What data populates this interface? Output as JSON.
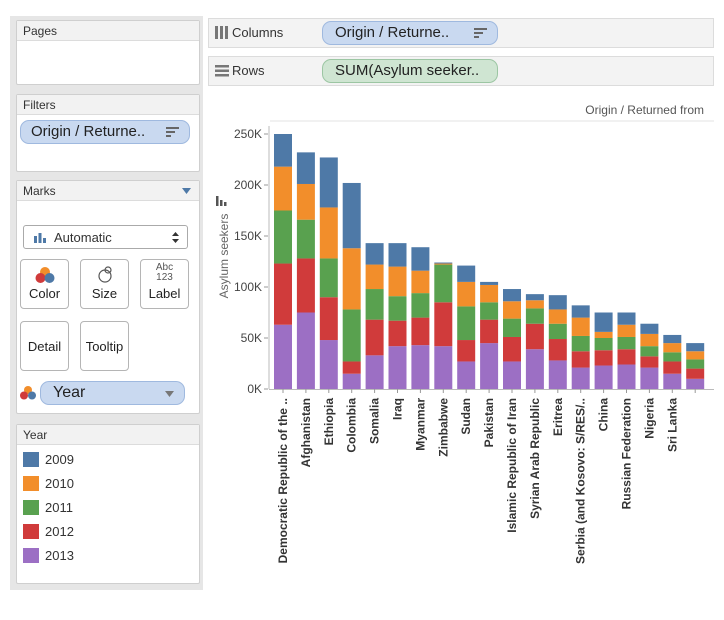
{
  "pages": {
    "title": "Pages"
  },
  "shelves": {
    "columns_label": "Columns",
    "columns_pill": "Origin / Returne..",
    "rows_label": "Rows",
    "rows_pill": "SUM(Asylum seeker.."
  },
  "filters": {
    "title": "Filters",
    "pill": "Origin / Returne.."
  },
  "marks": {
    "title": "Marks",
    "type": "Automatic",
    "buttons": {
      "color": "Color",
      "size": "Size",
      "label": "Label",
      "detail": "Detail",
      "tooltip": "Tooltip"
    },
    "label_glyph_top": "Abc",
    "label_glyph_bottom": "123",
    "color_pill": "Year"
  },
  "legend": {
    "title": "Year",
    "items": [
      {
        "label": "2009",
        "color": "#4e79a7"
      },
      {
        "label": "2010",
        "color": "#f28e2b"
      },
      {
        "label": "2011",
        "color": "#59a14f"
      },
      {
        "label": "2012",
        "color": "#d03b3b"
      },
      {
        "label": "2013",
        "color": "#9c6fc4"
      }
    ]
  },
  "chart_data": {
    "type": "bar",
    "stacked": true,
    "header": "Origin / Returned from",
    "ylabel": "Asylum seekers",
    "ylim": [
      0,
      250000
    ],
    "yticks": [
      0,
      50000,
      100000,
      150000,
      200000,
      250000
    ],
    "ytick_labels": [
      "0K",
      "50K",
      "100K",
      "150K",
      "200K",
      "250K"
    ],
    "categories": [
      "Democratic Republic of the ..",
      "Afghanistan",
      "Ethiopia",
      "Colombia",
      "Somalia",
      "Iraq",
      "Myanmar",
      "Zimbabwe",
      "Sudan",
      "Pakistan",
      "Islamic Republic of Iran",
      "Syrian Arab Republic",
      "Eritrea",
      "Serbia (and Kosovo: S/RES/..",
      "China",
      "Russian Federation",
      "Nigeria",
      "Sri Lanka",
      ""
    ],
    "series": [
      {
        "name": "2013",
        "values": [
          63000,
          75000,
          48000,
          15000,
          33000,
          42000,
          43000,
          42000,
          27000,
          45000,
          27000,
          39000,
          28000,
          21000,
          23000,
          24000,
          21000,
          15000,
          10000
        ]
      },
      {
        "name": "2012",
        "values": [
          60000,
          53000,
          42000,
          12000,
          35000,
          25000,
          27000,
          43000,
          21000,
          23000,
          24000,
          25000,
          21000,
          16000,
          15000,
          15000,
          11000,
          12000,
          10000
        ]
      },
      {
        "name": "2011",
        "values": [
          52000,
          38000,
          38000,
          51000,
          30000,
          24000,
          24000,
          37000,
          33000,
          17000,
          18000,
          15000,
          15000,
          15000,
          12000,
          12000,
          10000,
          9000,
          9000
        ]
      },
      {
        "name": "2010",
        "values": [
          43000,
          35000,
          50000,
          60000,
          24000,
          29000,
          22000,
          1000,
          24000,
          17000,
          17000,
          8000,
          14000,
          18000,
          6000,
          12000,
          12000,
          9000,
          8000
        ]
      },
      {
        "name": "2009",
        "values": [
          32000,
          31000,
          49000,
          64000,
          21000,
          23000,
          23000,
          1000,
          16000,
          3000,
          12000,
          6000,
          14000,
          12000,
          19000,
          12000,
          10000,
          8000,
          8000
        ]
      }
    ]
  }
}
